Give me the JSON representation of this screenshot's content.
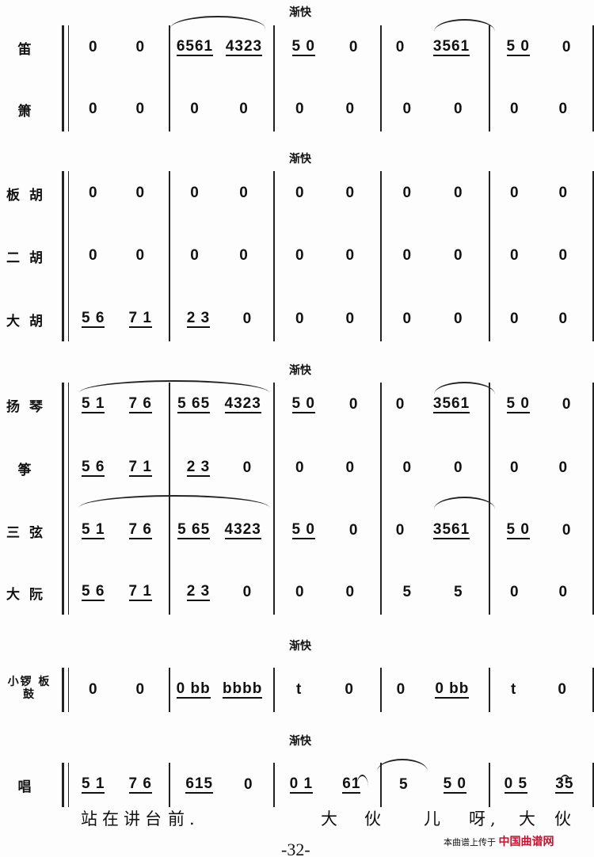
{
  "tempo_mark": "渐快",
  "rows": [
    {
      "label": "笛",
      "measures": [
        [
          "0",
          "0"
        ],
        [
          "6561",
          "4323"
        ],
        [
          "5 0",
          "0"
        ],
        [
          "0",
          "3561"
        ],
        [
          "5 0",
          "0"
        ]
      ]
    },
    {
      "label": "箫",
      "measures": [
        [
          "0",
          "0"
        ],
        [
          "0",
          "0"
        ],
        [
          "0",
          "0"
        ],
        [
          "0",
          "0"
        ],
        [
          "0",
          "0"
        ]
      ]
    },
    {
      "label": "板胡",
      "measures": [
        [
          "0",
          "0"
        ],
        [
          "0",
          "0"
        ],
        [
          "0",
          "0"
        ],
        [
          "0",
          "0"
        ],
        [
          "0",
          "0"
        ]
      ]
    },
    {
      "label": "二胡",
      "measures": [
        [
          "0",
          "0"
        ],
        [
          "0",
          "0"
        ],
        [
          "0",
          "0"
        ],
        [
          "0",
          "0"
        ],
        [
          "0",
          "0"
        ]
      ]
    },
    {
      "label": "大胡",
      "measures": [
        [
          "5 6",
          "7 1"
        ],
        [
          "2 3",
          "0"
        ],
        [
          "0",
          "0"
        ],
        [
          "0",
          "0"
        ],
        [
          "0",
          "0"
        ]
      ]
    },
    {
      "label": "扬琴",
      "measures": [
        [
          "5 1",
          "7 6"
        ],
        [
          "5 65",
          "4323"
        ],
        [
          "5 0",
          "0"
        ],
        [
          "0",
          "3561"
        ],
        [
          "5 0",
          "0"
        ]
      ]
    },
    {
      "label": "筝",
      "measures": [
        [
          "5 6",
          "7 1"
        ],
        [
          "2 3",
          "0"
        ],
        [
          "0",
          "0"
        ],
        [
          "0",
          "0"
        ],
        [
          "0",
          "0"
        ]
      ]
    },
    {
      "label": "三弦",
      "measures": [
        [
          "5 1",
          "7 6"
        ],
        [
          "5 65",
          "4323"
        ],
        [
          "5 0",
          "0"
        ],
        [
          "0",
          "3561"
        ],
        [
          "5 0",
          "0"
        ]
      ]
    },
    {
      "label": "大阮",
      "measures": [
        [
          "5 6",
          "7 1"
        ],
        [
          "2 3",
          "0"
        ],
        [
          "0",
          "0"
        ],
        [
          "5",
          "5"
        ],
        [
          "0",
          "0"
        ]
      ]
    },
    {
      "label": "小锣 板鼓",
      "measures": [
        [
          "0",
          "0"
        ],
        [
          "0 bb",
          "bbbb"
        ],
        [
          "t",
          "0"
        ],
        [
          "0",
          "0 bb"
        ],
        [
          "t",
          "0"
        ]
      ]
    },
    {
      "label": "唱",
      "measures": [
        [
          "5 1",
          "7 6"
        ],
        [
          "615",
          "0"
        ],
        [
          "0 1",
          "61"
        ],
        [
          "5",
          "5 0"
        ],
        [
          "0 5",
          "35"
        ]
      ]
    }
  ],
  "lyrics": [
    "站在讲台",
    "前.",
    "大",
    "伙",
    "儿",
    "呀,",
    "大",
    "伙"
  ],
  "page_number": "-32-",
  "watermark": {
    "text": "本曲谱上传于",
    "brand": "中国曲谱网"
  }
}
